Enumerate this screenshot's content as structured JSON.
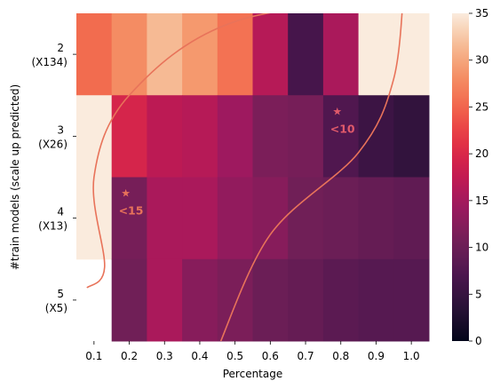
{
  "chart_data": {
    "type": "heatmap",
    "xlabel": "Percentage",
    "ylabel": "#train models (scale up predicted)",
    "x_categories": [
      "0.1",
      "0.2",
      "0.3",
      "0.4",
      "0.5",
      "0.6",
      "0.7",
      "0.8",
      "0.9",
      "1.0"
    ],
    "y_categories": [
      {
        "line1": "2",
        "line2": "(X134)"
      },
      {
        "line1": "3",
        "line2": "(X26)"
      },
      {
        "line1": "4",
        "line2": "(X13)"
      },
      {
        "line1": "5",
        "line2": "(X5)"
      }
    ],
    "values": [
      [
        25.5,
        28.0,
        31.5,
        29.0,
        26.0,
        16.5,
        6.5,
        15.5,
        35,
        35
      ],
      [
        35,
        19.5,
        17.0,
        16.5,
        14.5,
        11.5,
        11.0,
        7.5,
        5.5,
        4.5
      ],
      [
        35,
        11.0,
        15.5,
        15.5,
        13.5,
        12.5,
        10.5,
        10.0,
        9.5,
        9.0
      ],
      [
        null,
        10.5,
        15.5,
        12.5,
        11.5,
        10.0,
        9.5,
        8.5,
        8.0,
        8.0
      ]
    ],
    "colorbar": {
      "min": 0,
      "max": 35,
      "ticks": [
        "0",
        "5",
        "10",
        "15",
        "20",
        "25",
        "30",
        "35"
      ]
    },
    "annotations": [
      {
        "marker": "★",
        "label": "<15",
        "x": 0.19,
        "y_category": 2,
        "color": "#e8735a"
      },
      {
        "marker": "★",
        "label": "<10",
        "x": 0.79,
        "y_category": 1,
        "color": "#e05a6a"
      }
    ],
    "overlay_curves": [
      {
        "color": "#e8735a",
        "description_points": [
          [
            0.08,
            4.85
          ],
          [
            0.13,
            4.6
          ],
          [
            0.1,
            3.5
          ],
          [
            0.2,
            2.5
          ],
          [
            0.5,
            1.6
          ],
          [
            1.05,
            1.25
          ]
        ]
      },
      {
        "color": "#e8735a",
        "description_points": [
          [
            0.45,
            5.6
          ],
          [
            0.6,
            4.2
          ],
          [
            0.85,
            3.2
          ],
          [
            0.95,
            2.3
          ],
          [
            0.98,
            1.1
          ]
        ]
      }
    ]
  }
}
